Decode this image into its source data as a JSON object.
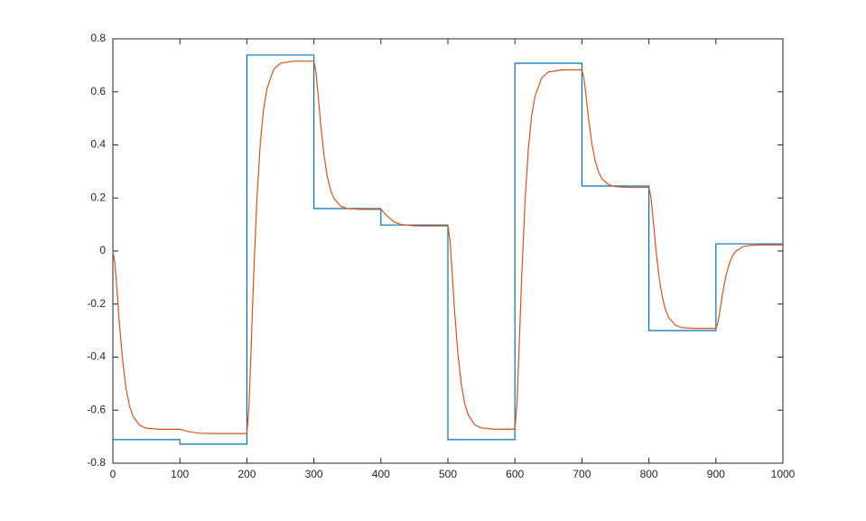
{
  "chart_data": {
    "type": "line",
    "xlim": [
      0,
      1000
    ],
    "xticks": [
      0,
      100,
      200,
      300,
      400,
      500,
      600,
      700,
      800,
      900,
      1000
    ],
    "ylim": [
      -0.8,
      0.8
    ],
    "yticks": [
      -0.8,
      -0.6,
      -0.4,
      -0.2,
      0,
      0.2,
      0.4,
      0.6,
      0.8
    ],
    "grid": false,
    "series": [
      {
        "color": "#0072BD",
        "x": [
          0,
          100,
          100,
          200,
          200,
          300,
          300,
          400,
          400,
          500,
          500,
          600,
          600,
          700,
          700,
          800,
          800,
          900,
          900,
          1000
        ],
        "values": [
          -0.711,
          -0.711,
          -0.728,
          -0.728,
          0.739,
          0.739,
          0.16,
          0.16,
          0.098,
          0.098,
          -0.711,
          -0.711,
          0.708,
          0.708,
          0.245,
          0.245,
          -0.3,
          -0.3,
          0.027,
          0.027
        ]
      },
      {
        "color": "#D95319",
        "x": [
          0,
          3,
          6,
          10,
          15,
          20,
          25,
          30,
          40,
          50,
          70,
          100,
          110,
          120,
          130,
          150,
          200,
          203,
          206,
          210,
          215,
          220,
          225,
          230,
          240,
          250,
          270,
          300,
          303,
          306,
          310,
          315,
          320,
          325,
          330,
          340,
          350,
          370,
          400,
          410,
          420,
          430,
          450,
          500,
          503,
          506,
          510,
          515,
          520,
          525,
          530,
          540,
          550,
          570,
          600,
          603,
          606,
          610,
          615,
          620,
          625,
          630,
          640,
          650,
          670,
          700,
          703,
          706,
          710,
          715,
          720,
          725,
          730,
          740,
          750,
          770,
          800,
          803,
          806,
          810,
          815,
          820,
          825,
          830,
          840,
          850,
          870,
          900,
          903,
          906,
          910,
          915,
          920,
          925,
          930,
          940,
          950,
          970,
          1000
        ],
        "values": [
          0,
          -0.046,
          -0.142,
          -0.281,
          -0.424,
          -0.523,
          -0.586,
          -0.623,
          -0.657,
          -0.668,
          -0.672,
          -0.672,
          -0.679,
          -0.684,
          -0.687,
          -0.688,
          -0.688,
          -0.591,
          -0.39,
          -0.101,
          0.198,
          0.406,
          0.536,
          0.613,
          0.685,
          0.708,
          0.716,
          0.716,
          0.677,
          0.597,
          0.482,
          0.363,
          0.281,
          0.229,
          0.198,
          0.169,
          0.16,
          0.157,
          0.157,
          0.131,
          0.109,
          0.1,
          0.095,
          0.095,
          0.042,
          -0.068,
          -0.226,
          -0.389,
          -0.502,
          -0.574,
          -0.616,
          -0.655,
          -0.667,
          -0.672,
          -0.672,
          -0.579,
          -0.385,
          -0.106,
          0.183,
          0.384,
          0.51,
          0.584,
          0.653,
          0.675,
          0.683,
          0.683,
          0.652,
          0.589,
          0.498,
          0.403,
          0.338,
          0.297,
          0.272,
          0.25,
          0.243,
          0.24,
          0.24,
          0.203,
          0.127,
          0.018,
          -0.096,
          -0.174,
          -0.224,
          -0.253,
          -0.28,
          -0.289,
          -0.292,
          -0.292,
          -0.27,
          -0.225,
          -0.16,
          -0.093,
          -0.047,
          -0.017,
          0.0,
          0.016,
          0.021,
          0.023,
          0.023
        ]
      }
    ]
  }
}
